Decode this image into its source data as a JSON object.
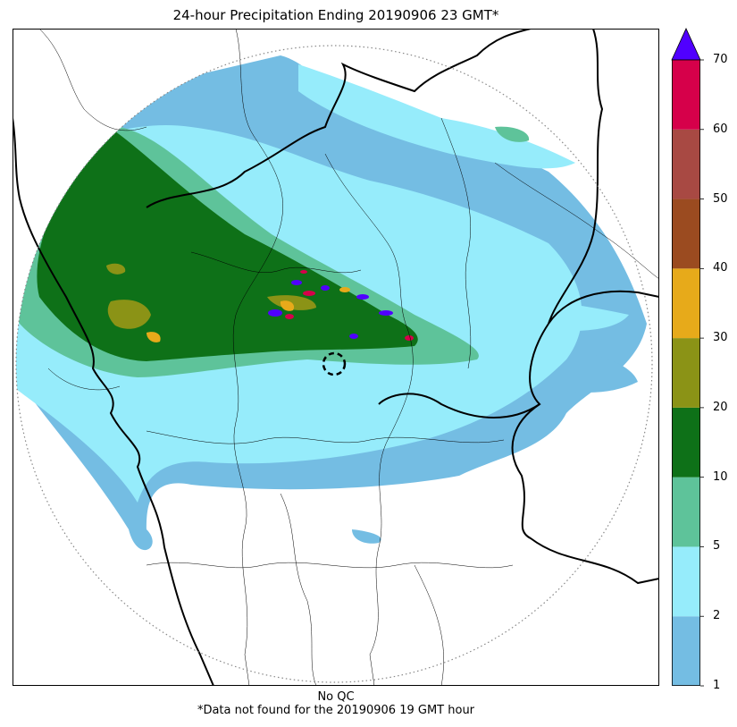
{
  "title": "24-hour Precipitation Ending 20190906 23 GMT*",
  "footer": {
    "qc_note": "No QC",
    "missing_note": "*Data not found for the 20190906 19 GMT hour"
  },
  "colorbar": {
    "ticks": [
      "1",
      "2",
      "5",
      "10",
      "20",
      "30",
      "40",
      "50",
      "60",
      "70"
    ],
    "bins": [
      {
        "from": "1",
        "to": "2",
        "color": "#74bde3"
      },
      {
        "from": "2",
        "to": "5",
        "color": "#96ecfb"
      },
      {
        "from": "5",
        "to": "10",
        "color": "#5ec39a"
      },
      {
        "from": "10",
        "to": "20",
        "color": "#0e7118"
      },
      {
        "from": "20",
        "to": "30",
        "color": "#8b9316"
      },
      {
        "from": "30",
        "to": "40",
        "color": "#e7aa1a"
      },
      {
        "from": "40",
        "to": "50",
        "color": "#9b4b20"
      },
      {
        "from": "50",
        "to": "60",
        "color": "#a84943"
      },
      {
        "from": "60",
        "to": "70",
        "color": "#d6004a"
      }
    ],
    "overflow_color": "#5000ff"
  }
}
